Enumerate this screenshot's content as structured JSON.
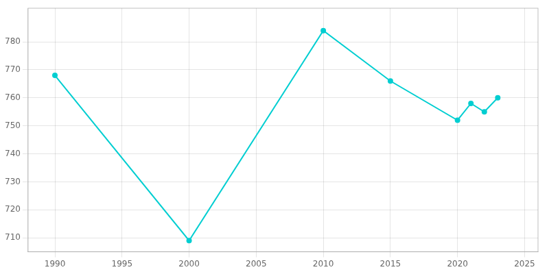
{
  "chart_data": {
    "type": "line",
    "x": [
      1990,
      2000,
      2010,
      2015,
      2020,
      2021,
      2022,
      2023
    ],
    "values": [
      768,
      709,
      784,
      766,
      752,
      758,
      755,
      760
    ],
    "color": "#00CED1",
    "marker": "circle",
    "xlim": [
      1988,
      2026
    ],
    "ylim": [
      705,
      792
    ],
    "xticks": [
      1990,
      1995,
      2000,
      2005,
      2010,
      2015,
      2020,
      2025
    ],
    "yticks": [
      710,
      720,
      730,
      740,
      750,
      760,
      770,
      780
    ],
    "grid": true
  }
}
